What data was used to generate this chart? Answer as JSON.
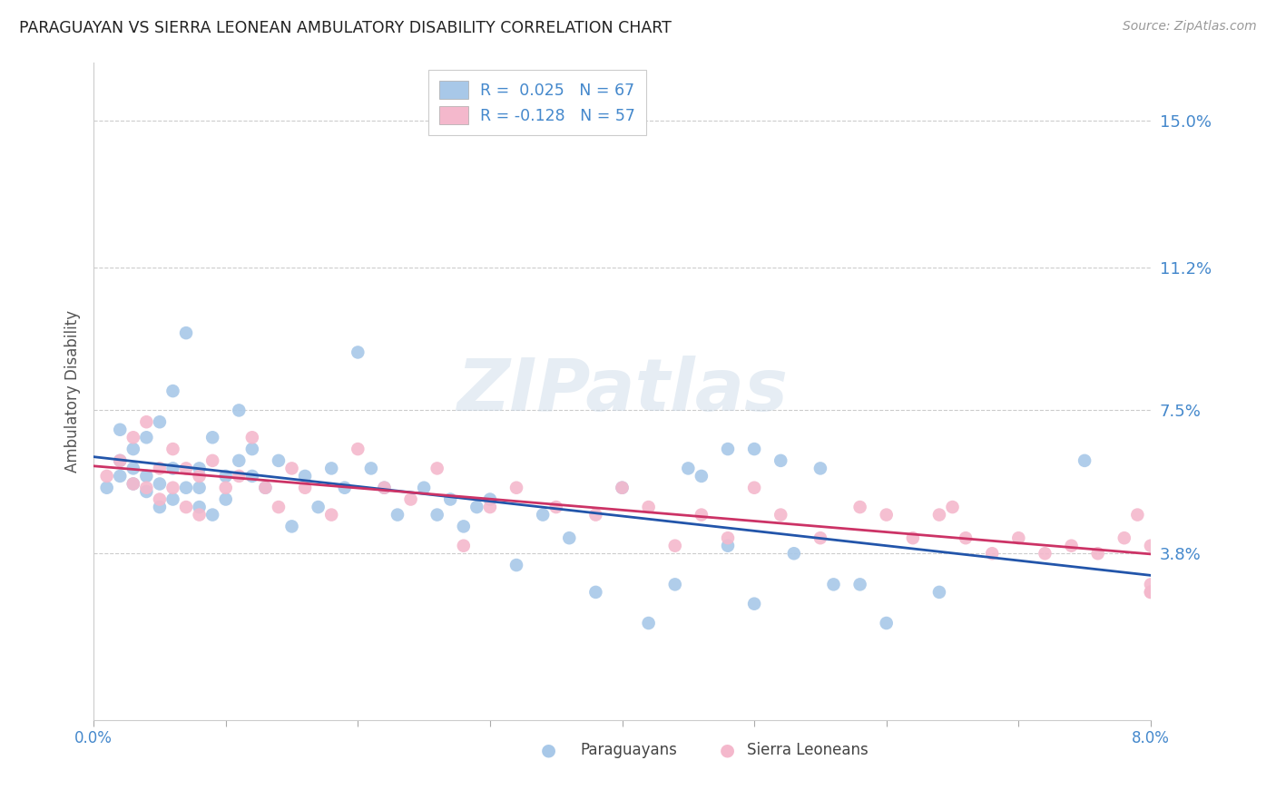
{
  "title": "PARAGUAYAN VS SIERRA LEONEAN AMBULATORY DISABILITY CORRELATION CHART",
  "source": "Source: ZipAtlas.com",
  "ylabel": "Ambulatory Disability",
  "ytick_labels": [
    "15.0%",
    "11.2%",
    "7.5%",
    "3.8%"
  ],
  "ytick_values": [
    0.15,
    0.112,
    0.075,
    0.038
  ],
  "xmin": 0.0,
  "xmax": 0.08,
  "ymin": -0.005,
  "ymax": 0.165,
  "color_paraguayan": "#a8c8e8",
  "color_sierra": "#f4b8cc",
  "color_line_paraguayan": "#2255aa",
  "color_line_sierra": "#cc3366",
  "color_tick": "#4488cc",
  "color_title": "#222222",
  "watermark": "ZIPatlas",
  "paraguayan_x": [
    0.001,
    0.002,
    0.002,
    0.002,
    0.003,
    0.003,
    0.003,
    0.004,
    0.004,
    0.004,
    0.005,
    0.005,
    0.005,
    0.006,
    0.006,
    0.006,
    0.007,
    0.007,
    0.008,
    0.008,
    0.008,
    0.009,
    0.009,
    0.01,
    0.01,
    0.011,
    0.011,
    0.012,
    0.012,
    0.013,
    0.014,
    0.015,
    0.016,
    0.017,
    0.018,
    0.019,
    0.02,
    0.021,
    0.022,
    0.023,
    0.025,
    0.026,
    0.027,
    0.028,
    0.029,
    0.03,
    0.032,
    0.034,
    0.036,
    0.038,
    0.04,
    0.042,
    0.044,
    0.046,
    0.048,
    0.05,
    0.053,
    0.056,
    0.06,
    0.064,
    0.045,
    0.048,
    0.05,
    0.052,
    0.055,
    0.058,
    0.075
  ],
  "paraguayan_y": [
    0.055,
    0.058,
    0.062,
    0.07,
    0.056,
    0.06,
    0.065,
    0.054,
    0.058,
    0.068,
    0.05,
    0.056,
    0.072,
    0.052,
    0.06,
    0.08,
    0.055,
    0.095,
    0.05,
    0.055,
    0.06,
    0.048,
    0.068,
    0.052,
    0.058,
    0.062,
    0.075,
    0.058,
    0.065,
    0.055,
    0.062,
    0.045,
    0.058,
    0.05,
    0.06,
    0.055,
    0.09,
    0.06,
    0.055,
    0.048,
    0.055,
    0.048,
    0.052,
    0.045,
    0.05,
    0.052,
    0.035,
    0.048,
    0.042,
    0.028,
    0.055,
    0.02,
    0.03,
    0.058,
    0.04,
    0.025,
    0.038,
    0.03,
    0.02,
    0.028,
    0.06,
    0.065,
    0.065,
    0.062,
    0.06,
    0.03,
    0.062
  ],
  "sierra_x": [
    0.001,
    0.002,
    0.003,
    0.003,
    0.004,
    0.004,
    0.005,
    0.005,
    0.006,
    0.006,
    0.007,
    0.007,
    0.008,
    0.008,
    0.009,
    0.01,
    0.011,
    0.012,
    0.013,
    0.014,
    0.015,
    0.016,
    0.018,
    0.02,
    0.022,
    0.024,
    0.026,
    0.028,
    0.03,
    0.032,
    0.035,
    0.038,
    0.04,
    0.042,
    0.044,
    0.046,
    0.048,
    0.05,
    0.052,
    0.055,
    0.058,
    0.06,
    0.062,
    0.064,
    0.065,
    0.066,
    0.068,
    0.07,
    0.072,
    0.074,
    0.076,
    0.078,
    0.079,
    0.08,
    0.08,
    0.08,
    0.08
  ],
  "sierra_y": [
    0.058,
    0.062,
    0.056,
    0.068,
    0.055,
    0.072,
    0.052,
    0.06,
    0.055,
    0.065,
    0.05,
    0.06,
    0.058,
    0.048,
    0.062,
    0.055,
    0.058,
    0.068,
    0.055,
    0.05,
    0.06,
    0.055,
    0.048,
    0.065,
    0.055,
    0.052,
    0.06,
    0.04,
    0.05,
    0.055,
    0.05,
    0.048,
    0.055,
    0.05,
    0.04,
    0.048,
    0.042,
    0.055,
    0.048,
    0.042,
    0.05,
    0.048,
    0.042,
    0.048,
    0.05,
    0.042,
    0.038,
    0.042,
    0.038,
    0.04,
    0.038,
    0.042,
    0.048,
    0.03,
    0.04,
    0.028,
    0.028
  ]
}
